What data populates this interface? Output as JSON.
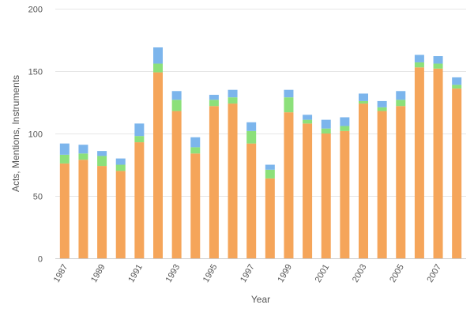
{
  "chart_data": {
    "type": "bar",
    "stacked": true,
    "xlabel": "Year",
    "ylabel": "Acts, Mentions, Instruments",
    "ylim": [
      0,
      200
    ],
    "yticks": [
      0,
      50,
      100,
      150,
      200
    ],
    "grid": true,
    "categories": [
      "1987",
      "1988",
      "1989",
      "1990",
      "1991",
      "1992",
      "1993",
      "1994",
      "1995",
      "1996",
      "1997",
      "1998",
      "1999",
      "2000",
      "2001",
      "2002",
      "2003",
      "2004",
      "2005",
      "2006",
      "2007",
      "2008"
    ],
    "xtick_labels": [
      "1987",
      "",
      "1989",
      "",
      "1991",
      "",
      "1993",
      "",
      "1995",
      "",
      "1997",
      "",
      "1999",
      "",
      "2001",
      "",
      "2003",
      "",
      "2005",
      "",
      "2007",
      ""
    ],
    "series": [
      {
        "color": "#f5a55a",
        "values": [
          76,
          79,
          74,
          70,
          93,
          149,
          118,
          84,
          122,
          124,
          92,
          64,
          117,
          108,
          100,
          102,
          124,
          118,
          122,
          153,
          152,
          136
        ]
      },
      {
        "color": "#8ce07a",
        "values": [
          7,
          5,
          8,
          5,
          5,
          7,
          9,
          5,
          5,
          5,
          10,
          7,
          12,
          3,
          4,
          4,
          2,
          3,
          5,
          4,
          4,
          3
        ]
      },
      {
        "color": "#7cb5ec",
        "values": [
          9,
          7,
          4,
          5,
          10,
          13,
          7,
          8,
          4,
          6,
          7,
          4,
          6,
          4,
          7,
          7,
          6,
          5,
          7,
          6,
          6,
          6
        ]
      }
    ]
  }
}
